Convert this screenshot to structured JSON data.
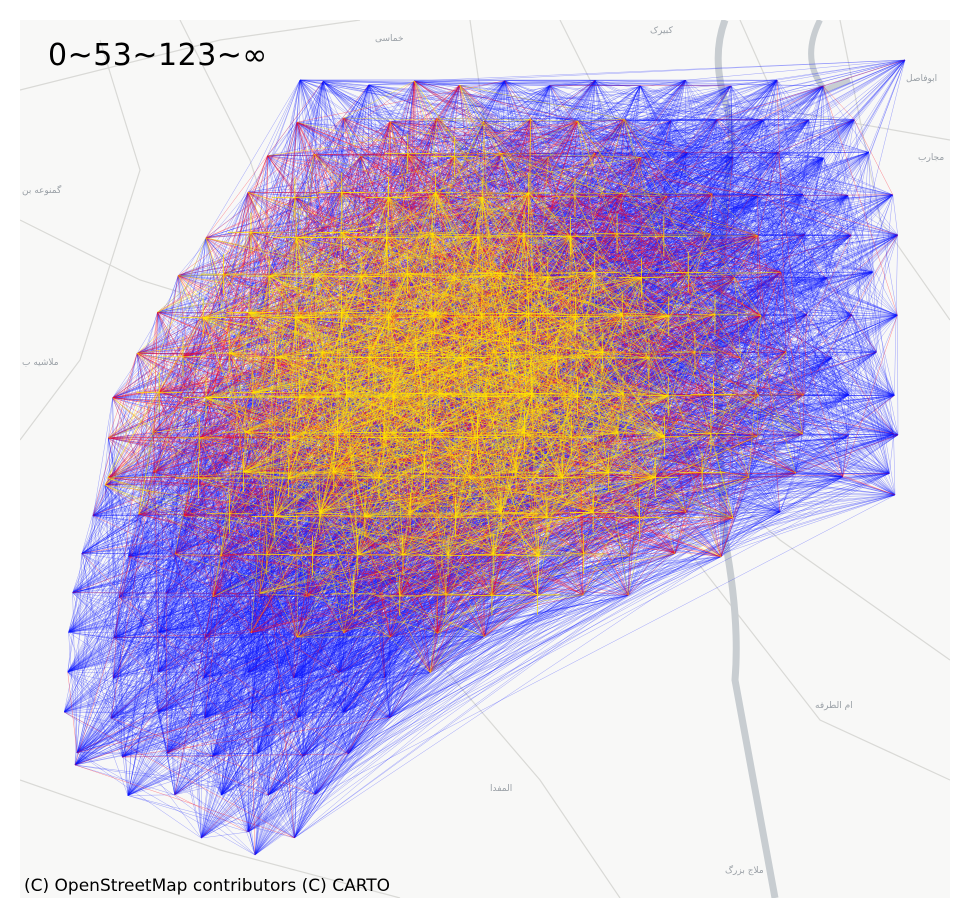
{
  "map": {
    "legend_title": "0~53~123~∞",
    "attribution": "(C) OpenStreetMap contributors (C) CARTO",
    "colors": {
      "background": "#f8f8f7",
      "road": "#d9d9d6",
      "river": "#c8cdd1",
      "tier_low": "#ffe600",
      "tier_mid": "#ff0a1e",
      "tier_high": "#0a14ff"
    },
    "place_labels": [
      {
        "id": "khamasi",
        "text": "خماسی"
      },
      {
        "id": "kabirak",
        "text": "کبیرک"
      },
      {
        "id": "abufasel",
        "text": "ابوفاصل"
      },
      {
        "id": "majarab",
        "text": "مجارب"
      },
      {
        "id": "gamnuea",
        "text": "گمنوعه بن"
      },
      {
        "id": "mulashieh",
        "text": "ملاشیه ب"
      },
      {
        "id": "umaltarfa",
        "text": "ام الطرفه"
      },
      {
        "id": "almafda",
        "text": "المفدا"
      },
      {
        "id": "malajbazrak",
        "text": "ملاج بزرگ"
      }
    ]
  }
}
